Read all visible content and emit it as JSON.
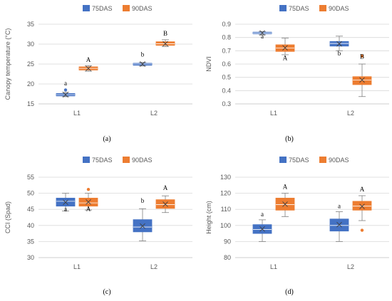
{
  "colors": {
    "75DAS": "#4472c4",
    "90DAS": "#ed7d31",
    "grid": "#d9d9d9",
    "axis": "#bfbfbf",
    "text": "#595959"
  },
  "chart_data": [
    {
      "type": "box",
      "panel_label": "(a)",
      "ylabel": "Canopy temperature (°C)",
      "categories": [
        "L1",
        "L2"
      ],
      "ylim": [
        15,
        35
      ],
      "yticks": [
        15,
        20,
        25,
        30,
        35
      ],
      "grid": true,
      "legend_position": "top",
      "series": [
        {
          "name": "75DAS",
          "boxes": [
            {
              "min": 16.8,
              "q1": 17.0,
              "median": 17.3,
              "q3": 17.6,
              "max": 17.9,
              "mean": 17.3,
              "outliers": [
                18.5
              ],
              "letter": "a",
              "letter_at": 20.2
            },
            {
              "min": 24.5,
              "q1": 24.7,
              "median": 25.0,
              "q3": 25.2,
              "max": 25.4,
              "mean": 25.0,
              "outliers": [],
              "letter": "b",
              "letter_at": 27.4
            }
          ]
        },
        {
          "name": "90DAS",
          "boxes": [
            {
              "min": 23.2,
              "q1": 23.5,
              "median": 23.9,
              "q3": 24.3,
              "max": 24.6,
              "mean": 23.9,
              "outliers": [],
              "letter": "A",
              "letter_at": 26.1
            },
            {
              "min": 29.4,
              "q1": 29.7,
              "median": 30.1,
              "q3": 30.6,
              "max": 31.1,
              "mean": 30.1,
              "outliers": [],
              "letter": "B",
              "letter_at": 32.7
            }
          ]
        }
      ]
    },
    {
      "type": "box",
      "panel_label": "(b)",
      "ylabel": "NDVI",
      "categories": [
        "L1",
        "L2"
      ],
      "ylim": [
        0.3,
        0.9
      ],
      "yticks": [
        0.3,
        0.4,
        0.5,
        0.6,
        0.7,
        0.8,
        0.9
      ],
      "grid": true,
      "legend_position": "top",
      "series": [
        {
          "name": "75DAS",
          "boxes": [
            {
              "min": 0.82,
              "q1": 0.828,
              "median": 0.834,
              "q3": 0.84,
              "max": 0.845,
              "mean": 0.834,
              "outliers": [],
              "letter": "a",
              "letter_at": 0.808
            },
            {
              "min": 0.7,
              "q1": 0.735,
              "median": 0.755,
              "q3": 0.77,
              "max": 0.81,
              "mean": 0.752,
              "outliers": [],
              "letter": "b",
              "letter_at": 0.68
            }
          ]
        },
        {
          "name": "90DAS",
          "boxes": [
            {
              "min": 0.67,
              "q1": 0.695,
              "median": 0.72,
              "q3": 0.745,
              "max": 0.795,
              "mean": 0.722,
              "outliers": [],
              "letter": "A",
              "letter_at": 0.645
            },
            {
              "min": 0.355,
              "q1": 0.445,
              "median": 0.48,
              "q3": 0.505,
              "max": 0.6,
              "mean": 0.48,
              "outliers": [
                0.66
              ],
              "letter": "B",
              "letter_at": 0.655
            }
          ]
        }
      ]
    },
    {
      "type": "box",
      "panel_label": "(c)",
      "ylabel": "CCI (Spad)",
      "categories": [
        "L1",
        "L2"
      ],
      "ylim": [
        30,
        55
      ],
      "yticks": [
        30,
        35,
        40,
        45,
        50,
        55
      ],
      "grid": true,
      "legend_position": "top",
      "series": [
        {
          "name": "75DAS",
          "boxes": [
            {
              "min": 44.5,
              "q1": 46.0,
              "median": 47.5,
              "q3": 48.5,
              "max": 50.0,
              "mean": 47.2,
              "outliers": [],
              "letter": "a",
              "letter_at": 45.0
            },
            {
              "min": 35.2,
              "q1": 38.0,
              "median": 39.5,
              "q3": 41.8,
              "max": 45.2,
              "mean": 39.8,
              "outliers": [],
              "letter": "b",
              "letter_at": 47.7
            }
          ]
        },
        {
          "name": "90DAS",
          "boxes": [
            {
              "min": 44.8,
              "q1": 46.0,
              "median": 47.0,
              "q3": 48.5,
              "max": 50.0,
              "mean": 47.3,
              "outliers": [
                51.2
              ],
              "letter": "A",
              "letter_at": 45.2
            },
            {
              "min": 44.0,
              "q1": 45.3,
              "median": 46.5,
              "q3": 48.0,
              "max": 49.2,
              "mean": 46.6,
              "outliers": [],
              "letter": "A",
              "letter_at": 51.7
            }
          ]
        }
      ]
    },
    {
      "type": "box",
      "panel_label": "(d)",
      "ylabel": "Height (cm)",
      "categories": [
        "L1",
        "L2"
      ],
      "ylim": [
        80,
        130
      ],
      "yticks": [
        80,
        90,
        100,
        110,
        120,
        130
      ],
      "grid": true,
      "legend_position": "top",
      "series": [
        {
          "name": "75DAS",
          "boxes": [
            {
              "min": 90.0,
              "q1": 95.0,
              "median": 97.5,
              "q3": 100.5,
              "max": 103.5,
              "mean": 97.8,
              "outliers": [],
              "letter": "a",
              "letter_at": 107.0
            },
            {
              "min": 90.0,
              "q1": 96.5,
              "median": 100.0,
              "q3": 104.0,
              "max": 108.5,
              "mean": 100.5,
              "outliers": [],
              "letter": "a",
              "letter_at": 112.0
            }
          ]
        },
        {
          "name": "90DAS",
          "boxes": [
            {
              "min": 105.5,
              "q1": 109.5,
              "median": 113.0,
              "q3": 117.0,
              "max": 120.0,
              "mean": 113.2,
              "outliers": [],
              "letter": "A",
              "letter_at": 124.0
            },
            {
              "min": 103.0,
              "q1": 109.5,
              "median": 112.0,
              "q3": 115.0,
              "max": 118.5,
              "mean": 111.8,
              "outliers": [
                97.0
              ],
              "letter": "A",
              "letter_at": 122.5
            }
          ]
        }
      ]
    }
  ]
}
